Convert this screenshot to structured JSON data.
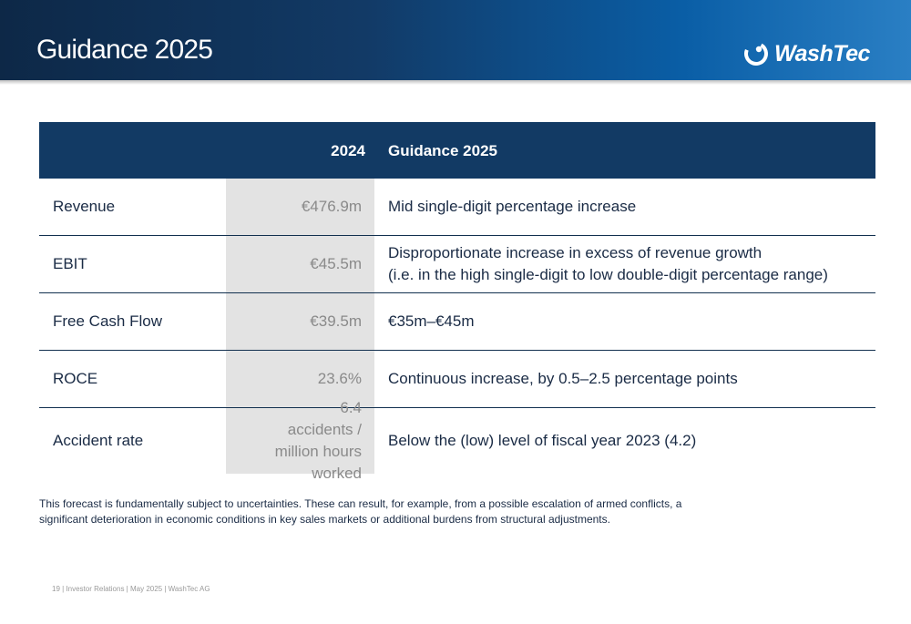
{
  "header": {
    "title": "Guidance 2025",
    "logo_text": "WashTec"
  },
  "table": {
    "headers": [
      "",
      "2024",
      "Guidance 2025"
    ],
    "rows": [
      {
        "label": "Revenue",
        "y2024": "€476.9m",
        "guidance": "Mid single-digit percentage increase"
      },
      {
        "label": "EBIT",
        "y2024": "€45.5m",
        "guidance": "Disproportionate increase in excess of revenue growth\n(i.e. in the high single-digit to low double-digit percentage range)"
      },
      {
        "label": "Free Cash Flow",
        "y2024": "€39.5m",
        "guidance": "€35m–€45m"
      },
      {
        "label": "ROCE",
        "y2024": "23.6%",
        "guidance": "Continuous increase, by 0.5–2.5 percentage points"
      },
      {
        "label": "Accident rate",
        "y2024": "6.4\naccidents /\nmillion hours worked",
        "guidance": "Below the (low) level of fiscal year 2023 (4.2)"
      }
    ]
  },
  "footnote": "This forecast is fundamentally subject to uncertainties. These can result, for example, from a possible escalation of armed conflicts, a significant deterioration in economic conditions in key sales markets or additional burdens from structural adjustments.",
  "footer": "19 |  Investor Relations | May 2025 | WashTec AG"
}
